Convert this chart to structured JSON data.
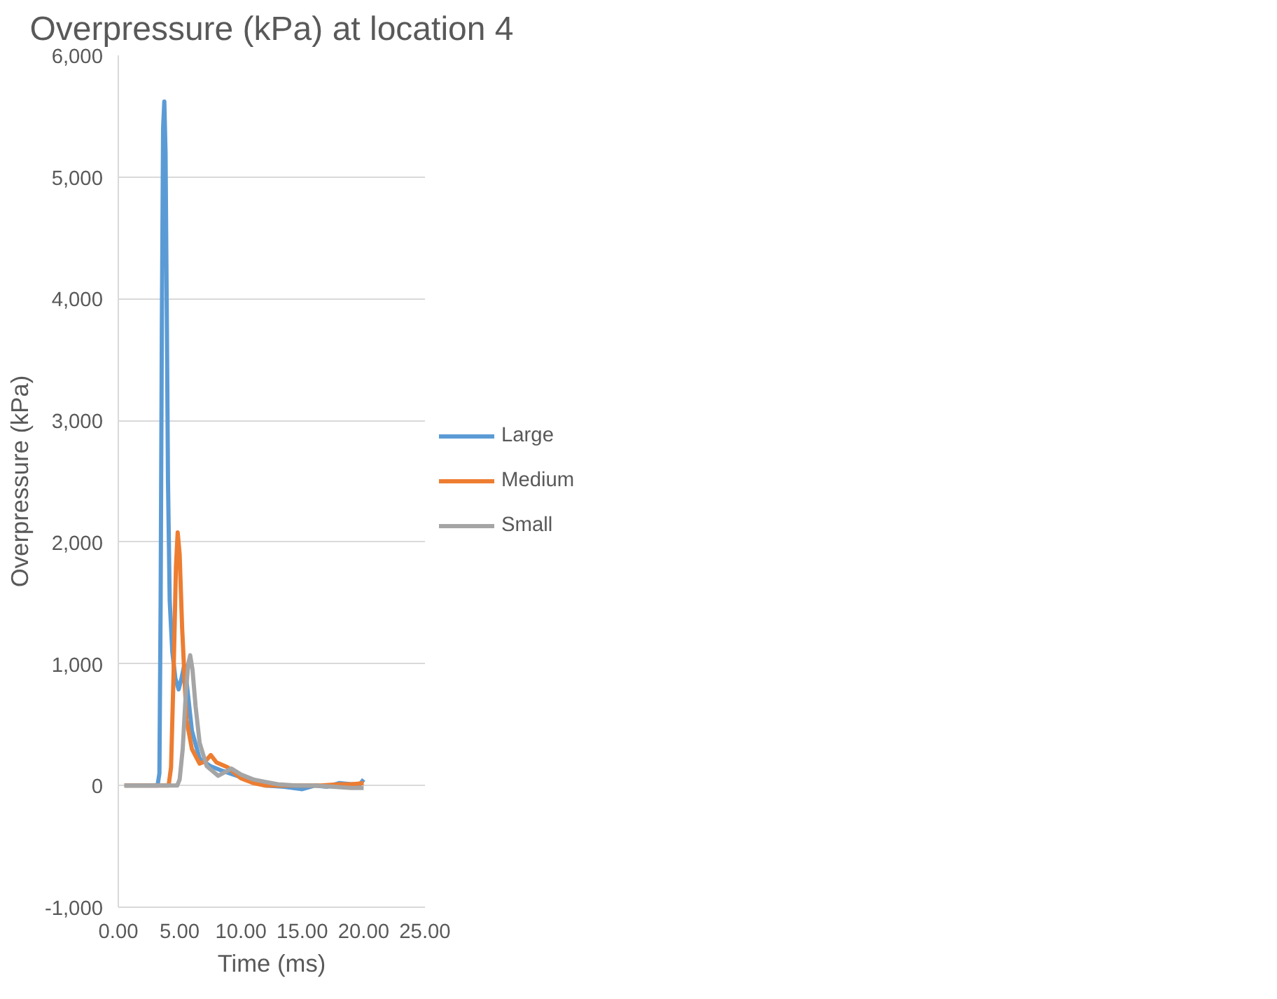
{
  "chart_data": {
    "type": "line",
    "title": "Overpressure (kPa) at location 4",
    "xlabel": "Time (ms)",
    "ylabel": "Overpressure (kPa)",
    "xlim": [
      0,
      25
    ],
    "xticks": [
      {
        "value": 0,
        "label": "0.00"
      },
      {
        "value": 5,
        "label": "5.00"
      },
      {
        "value": 10,
        "label": "10.00"
      },
      {
        "value": 15,
        "label": "15.00"
      },
      {
        "value": 20,
        "label": "20.00"
      },
      {
        "value": 25,
        "label": "25.00"
      }
    ],
    "ylim": [
      -1000,
      6000
    ],
    "yticks": [
      {
        "value": -1000,
        "label": "-1,000"
      },
      {
        "value": 0,
        "label": "0"
      },
      {
        "value": 1000,
        "label": "1,000"
      },
      {
        "value": 2000,
        "label": "2,000"
      },
      {
        "value": 3000,
        "label": "3,000"
      },
      {
        "value": 4000,
        "label": "4,000"
      },
      {
        "value": 5000,
        "label": "5,000"
      },
      {
        "value": 6000,
        "label": "6,000"
      }
    ],
    "grid": "y",
    "legend": "right",
    "marker": "none",
    "line_style": "solid",
    "series": [
      {
        "name": "Large",
        "color": "#5b9bd5",
        "x": [
          0.5,
          3.2,
          3.35,
          3.45,
          3.55,
          3.65,
          3.75,
          3.85,
          3.95,
          4.05,
          4.19,
          4.4,
          4.65,
          4.92,
          5.15,
          5.38,
          5.6,
          6.0,
          6.63,
          7.5,
          8.5,
          9.67,
          11,
          12,
          13.5,
          15,
          16,
          17,
          18,
          19,
          19.7,
          20
        ],
        "values": [
          0,
          0,
          100,
          1500,
          3800,
          5400,
          5620,
          5200,
          3900,
          2500,
          1520,
          1100,
          880,
          790,
          880,
          990,
          820,
          450,
          220,
          160,
          120,
          80,
          30,
          0,
          -10,
          -30,
          0,
          -10,
          20,
          10,
          10,
          50
        ]
      },
      {
        "name": "Medium",
        "color": "#ed7d31",
        "x": [
          0.5,
          4.1,
          4.3,
          4.5,
          4.7,
          4.84,
          5.0,
          5.2,
          5.56,
          6.0,
          6.63,
          7.1,
          7.54,
          8.0,
          8.91,
          10,
          11,
          12,
          13.5,
          15,
          16.5,
          18,
          19,
          20
        ],
        "values": [
          0,
          0,
          150,
          900,
          1800,
          2080,
          1900,
          1300,
          540,
          300,
          180,
          200,
          250,
          190,
          150,
          60,
          20,
          0,
          0,
          0,
          0,
          10,
          10,
          20
        ]
      },
      {
        "name": "Small",
        "color": "#a5a5a5",
        "x": [
          0.5,
          4.8,
          5.0,
          5.25,
          5.5,
          5.7,
          5.86,
          6.05,
          6.3,
          6.63,
          7.2,
          8.14,
          8.7,
          9.22,
          10,
          11,
          12,
          13,
          14.5,
          16,
          17.5,
          19,
          20
        ],
        "values": [
          0,
          0,
          50,
          300,
          750,
          1000,
          1070,
          950,
          650,
          350,
          160,
          80,
          110,
          140,
          90,
          50,
          30,
          10,
          0,
          0,
          -10,
          -20,
          -20
        ]
      }
    ]
  }
}
